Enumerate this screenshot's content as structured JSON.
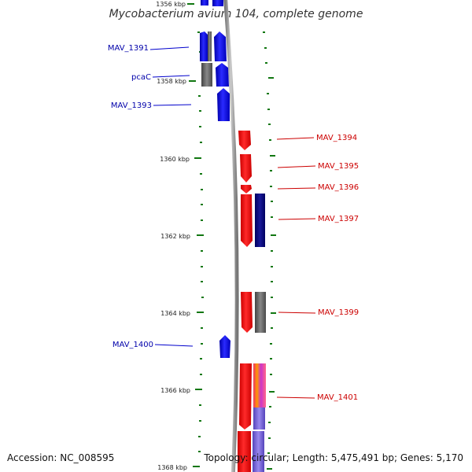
{
  "title": "Mycobacterium avium 104, complete genome",
  "accession": "Accession: NC_008595",
  "topology": "Topology: circular; Length: 5,475,491 bp; Genes: 5,170",
  "colors": {
    "forward_gene": "#0000dd",
    "reverse_gene": "#ee0000",
    "pseudo_gene": "#666666",
    "dark_gene": "#000080",
    "forward_label": "#0000aa",
    "reverse_label": "#cc0000",
    "tick": "#117711",
    "backbone": "#999999"
  },
  "ruler": [
    "1356 kbp",
    "1358 kbp",
    "1360 kbp",
    "1362 kbp",
    "1364 kbp",
    "1366 kbp",
    "1368 kbp"
  ],
  "forward_labels": [
    "MAV_1391",
    "pcaC",
    "MAV_1393",
    "MAV_1400"
  ],
  "reverse_labels": [
    "MAV_1394",
    "MAV_1395",
    "MAV_1396",
    "MAV_1397",
    "MAV_1399",
    "MAV_1401"
  ]
}
